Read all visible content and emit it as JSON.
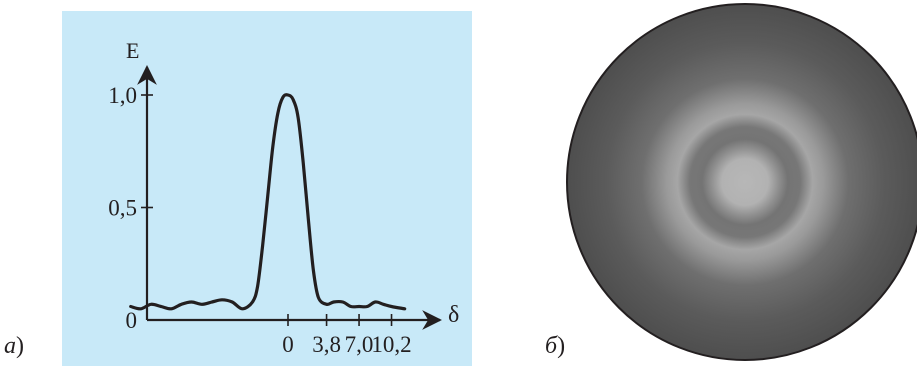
{
  "panel_a": {
    "label_letter": "а",
    "label_paren": ")",
    "background": "#c8e9f8",
    "curve_color": "#231f20",
    "chart_data": {
      "type": "line",
      "xlabel": "δ",
      "ylabel": "E",
      "y_ticks": [
        "1,0",
        "0,5",
        "0"
      ],
      "y_tick_values": [
        1.0,
        0.5,
        0
      ],
      "x_ticks": [
        "0",
        "3,8",
        "7,0",
        "10,2"
      ],
      "x_tick_values": [
        0,
        3.8,
        7.0,
        10.2
      ],
      "xlim": [
        -16.5,
        12
      ],
      "ylim": [
        0,
        1.1
      ],
      "x": [
        -15.5,
        -14.5,
        -13.5,
        -12.5,
        -11.5,
        -10.5,
        -9.5,
        -8.5,
        -7.5,
        -6.5,
        -5.5,
        -4.5,
        -3.5,
        -3.0,
        -2.5,
        -2.0,
        -1.5,
        -1.0,
        -0.5,
        0,
        0.5,
        1.0,
        1.5,
        2.0,
        2.5,
        3.0,
        3.8,
        4.5,
        5.4,
        6.2,
        7.0,
        7.8,
        8.6,
        9.4,
        10.2,
        11.5
      ],
      "y": [
        0.06,
        0.05,
        0.07,
        0.06,
        0.05,
        0.07,
        0.08,
        0.07,
        0.08,
        0.09,
        0.08,
        0.05,
        0.08,
        0.15,
        0.33,
        0.55,
        0.77,
        0.92,
        0.99,
        1.0,
        0.98,
        0.9,
        0.7,
        0.45,
        0.22,
        0.1,
        0.07,
        0.08,
        0.08,
        0.06,
        0.06,
        0.06,
        0.08,
        0.07,
        0.06,
        0.05
      ]
    }
  },
  "panel_b": {
    "label_letter": "б",
    "label_paren": ")",
    "ring_profile": [
      {
        "r": 0.0,
        "color": "#b7b7b7"
      },
      {
        "r": 0.13,
        "color": "#b2b2b2"
      },
      {
        "r": 0.19,
        "color": "#8f8f8f"
      },
      {
        "r": 0.24,
        "color": "#747474"
      },
      {
        "r": 0.31,
        "color": "#777777"
      },
      {
        "r": 0.38,
        "color": "#a6a6a6"
      },
      {
        "r": 0.44,
        "color": "#9a9a9a"
      },
      {
        "r": 0.58,
        "color": "#6f6f6f"
      },
      {
        "r": 0.78,
        "color": "#5b5b5b"
      },
      {
        "r": 1.0,
        "color": "#4e4e4e"
      }
    ],
    "border_color": "#231f20"
  }
}
